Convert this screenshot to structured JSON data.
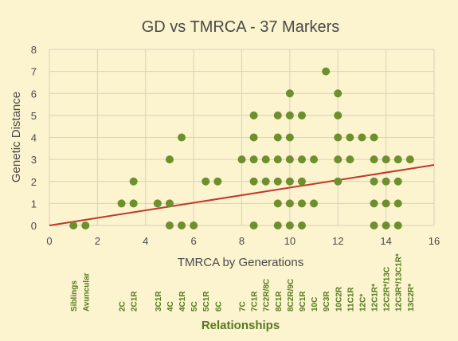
{
  "chart_data": {
    "type": "scatter",
    "title": "GD vs TMRCA - 37 Markers",
    "xlabel": "TMRCA by Generations",
    "ylabel": "Genetic Distance",
    "secondary_xlabel": "Relationships",
    "xlim": [
      0,
      16
    ],
    "ylim": [
      0,
      8
    ],
    "xticks": [
      0,
      2,
      4,
      6,
      8,
      10,
      12,
      14,
      16
    ],
    "yticks": [
      0,
      1,
      2,
      3,
      4,
      5,
      6,
      7,
      8
    ],
    "grid": true,
    "legend": "none",
    "colors": {
      "background": "#fcf3cf",
      "grid": "#d9d2b7",
      "points": "#6e8f2d",
      "trendline": "#c0392b",
      "relationship_labels": "#557a1f",
      "text": "#4a4a4a"
    },
    "series": [
      {
        "points": [
          [
            1,
            0
          ],
          [
            1.5,
            0
          ],
          [
            3,
            1
          ],
          [
            3.5,
            1
          ],
          [
            3.5,
            2
          ],
          [
            4.5,
            1
          ],
          [
            5,
            0
          ],
          [
            5,
            1
          ],
          [
            5,
            3
          ],
          [
            5.5,
            0
          ],
          [
            5.5,
            4
          ],
          [
            6,
            0
          ],
          [
            6.5,
            2
          ],
          [
            7,
            2
          ],
          [
            8,
            3
          ],
          [
            8.5,
            0
          ],
          [
            8.5,
            2
          ],
          [
            8.5,
            3
          ],
          [
            8.5,
            4
          ],
          [
            8.5,
            5
          ],
          [
            9,
            2
          ],
          [
            9,
            3
          ],
          [
            9.5,
            0
          ],
          [
            9.5,
            1
          ],
          [
            9.5,
            2
          ],
          [
            9.5,
            3
          ],
          [
            9.5,
            4
          ],
          [
            9.5,
            5
          ],
          [
            10,
            0
          ],
          [
            10,
            1
          ],
          [
            10,
            2
          ],
          [
            10,
            3
          ],
          [
            10,
            4
          ],
          [
            10,
            5
          ],
          [
            10,
            6
          ],
          [
            10.5,
            0
          ],
          [
            10.5,
            1
          ],
          [
            10.5,
            2
          ],
          [
            10.5,
            3
          ],
          [
            10.5,
            5
          ],
          [
            11,
            1
          ],
          [
            11,
            3
          ],
          [
            11.5,
            7
          ],
          [
            12,
            2
          ],
          [
            12,
            3
          ],
          [
            12,
            4
          ],
          [
            12,
            5
          ],
          [
            12,
            6
          ],
          [
            12.5,
            3
          ],
          [
            12.5,
            4
          ],
          [
            13,
            4
          ],
          [
            13.5,
            0
          ],
          [
            13.5,
            1
          ],
          [
            13.5,
            2
          ],
          [
            13.5,
            3
          ],
          [
            13.5,
            4
          ],
          [
            14,
            0
          ],
          [
            14,
            1
          ],
          [
            14,
            2
          ],
          [
            14,
            3
          ],
          [
            14.5,
            0
          ],
          [
            14.5,
            1
          ],
          [
            14.5,
            2
          ],
          [
            14.5,
            3
          ],
          [
            15,
            3
          ]
        ]
      }
    ],
    "trendline": {
      "start": [
        0,
        0
      ],
      "end": [
        16,
        2.75
      ]
    },
    "relationships": [
      {
        "x": 1,
        "label": "Siblings"
      },
      {
        "x": 1.5,
        "label": "Avuncular"
      },
      {
        "x": 3,
        "label": "2C"
      },
      {
        "x": 3.5,
        "label": "2C1R"
      },
      {
        "x": 4.5,
        "label": "3C1R"
      },
      {
        "x": 5,
        "label": "4C"
      },
      {
        "x": 5.5,
        "label": "4C1R"
      },
      {
        "x": 6,
        "label": "5C"
      },
      {
        "x": 6.5,
        "label": "5C1R"
      },
      {
        "x": 7,
        "label": "6C"
      },
      {
        "x": 8,
        "label": "7C"
      },
      {
        "x": 8.5,
        "label": "7C1R"
      },
      {
        "x": 9,
        "label": "7C2R/8C"
      },
      {
        "x": 9.5,
        "label": "8C1R"
      },
      {
        "x": 10,
        "label": "8C2R/9C"
      },
      {
        "x": 10.5,
        "label": "9C1R"
      },
      {
        "x": 11,
        "label": "10C"
      },
      {
        "x": 11.5,
        "label": "9C3R"
      },
      {
        "x": 12,
        "label": "10C2R"
      },
      {
        "x": 12.5,
        "label": "11C1R"
      },
      {
        "x": 13,
        "label": "12C*"
      },
      {
        "x": 13.5,
        "label": "12C1R*"
      },
      {
        "x": 14,
        "label": "12C2R*/13C"
      },
      {
        "x": 14.5,
        "label": "12C3R*/13C1R*"
      },
      {
        "x": 15,
        "label": "13C2R*"
      }
    ]
  }
}
